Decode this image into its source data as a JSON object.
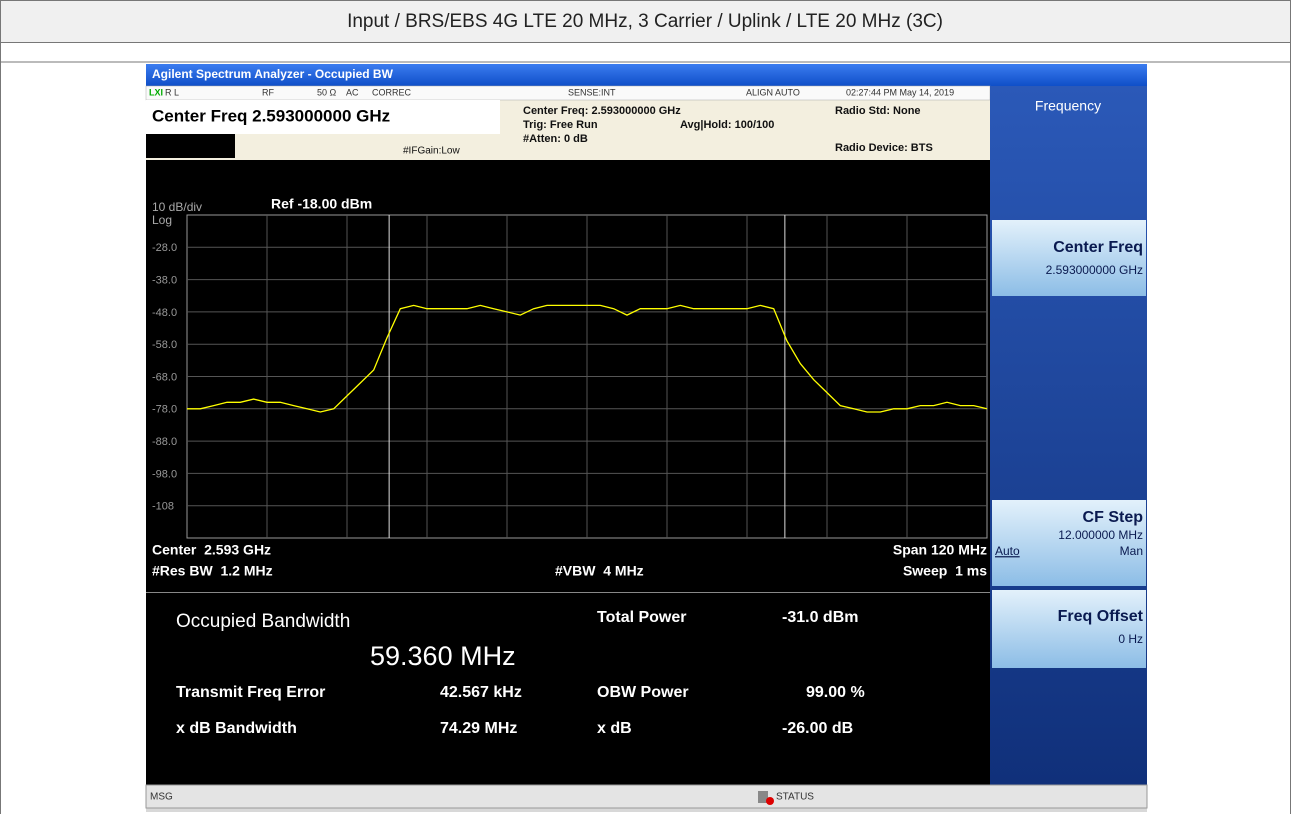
{
  "header": {
    "title": "Input / BRS/EBS 4G LTE 20 MHz, 3 Carrier / Uplink / LTE 20 MHz (3C)"
  },
  "window_title": "Agilent Spectrum Analyzer - Occupied BW",
  "status": {
    "lxi": "LXI",
    "rl": "R L",
    "rf": "RF",
    "ohm": "50 Ω",
    "ac": "AC",
    "correc": "CORREC",
    "sense": "SENSE:INT",
    "align": "ALIGN AUTO",
    "datetime": "02:27:44 PM May 14, 2019",
    "center": "Center Freq 2.593000000 GHz",
    "ifgain": "#IFGain:Low",
    "center_small": "Center Freq: 2.593000000 GHz",
    "trig": "Trig: Free Run",
    "avg": "Avg|Hold: 100/100",
    "atten": "#Atten: 0 dB",
    "radio_std": "Radio Std: None",
    "radio_dev": "Radio Device: BTS"
  },
  "chart_data": {
    "type": "line",
    "scale": "10 dB/div",
    "log": "Log",
    "ref": "Ref -18.00 dBm",
    "color": "#ffff00",
    "ylim": [
      -118,
      -18
    ],
    "yticks": [
      {
        "value": -28,
        "label": "-28.0"
      },
      {
        "value": -38,
        "label": "-38.0"
      },
      {
        "value": -48,
        "label": "-48.0"
      },
      {
        "value": -58,
        "label": "-58.0"
      },
      {
        "value": -68,
        "label": "-68.0"
      },
      {
        "value": -78,
        "label": "-78.0"
      },
      {
        "value": -88,
        "label": "-88.0"
      },
      {
        "value": -98,
        "label": "-98.0"
      },
      -108
    ],
    "xlim": [
      -60,
      60
    ],
    "obw_markers": [
      -29.68,
      29.68
    ],
    "values": [
      -78,
      -78,
      -77,
      -76,
      -76,
      -75,
      -76,
      -76,
      -77,
      -78,
      -79,
      -78,
      -74,
      -70,
      -66,
      -56,
      -47,
      -46,
      -47,
      -47,
      -47,
      -47,
      -46,
      -47,
      -48,
      -49,
      -47,
      -46,
      -46,
      -46,
      -46,
      -46,
      -47,
      -49,
      -47,
      -47,
      -47,
      -46,
      -47,
      -47,
      -47,
      -47,
      -47,
      -46,
      -47,
      -57,
      -64,
      -69,
      -73,
      -77,
      -78,
      -79,
      -79,
      -78,
      -78,
      -77,
      -77,
      -76,
      -77,
      -77,
      -78
    ],
    "footer": {
      "center": "Center  2.593 GHz",
      "res_bw": "#Res BW  1.2 MHz",
      "vbw": "#VBW  4 MHz",
      "span": "Span 120 MHz",
      "sweep": "Sweep  1 ms"
    }
  },
  "results": {
    "obw_label": "Occupied Bandwidth",
    "obw_value": "59.360 MHz",
    "total_power_label": "Total Power",
    "total_power": "-31.0 dBm",
    "tfe_label": "Transmit Freq Error",
    "tfe": "42.567 kHz",
    "obw_power_label": "OBW Power",
    "obw_power": "99.00 %",
    "xdb_bw_label": "x dB Bandwidth",
    "xdb_bw": "74.29 MHz",
    "xdb_label": "x dB",
    "xdb": "-26.00 dB"
  },
  "softkeys": {
    "menu": "Frequency",
    "keys": [
      {
        "label": "Center Freq",
        "value": "2.593000000 GHz"
      },
      {
        "label": "CF Step",
        "value": "12.000000 MHz",
        "auto": "Auto",
        "man": "Man"
      },
      {
        "label": "Freq Offset",
        "value": "0 Hz"
      }
    ]
  },
  "msg": "MSG",
  "status_label": "STATUS"
}
